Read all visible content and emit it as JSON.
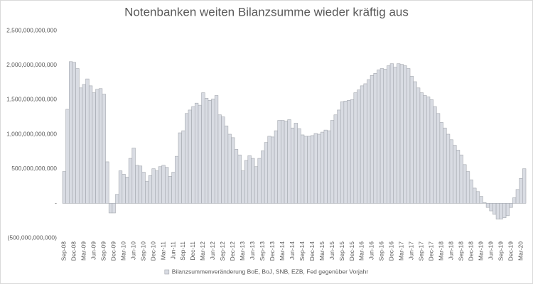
{
  "chart_data": {
    "type": "bar",
    "title": "Notenbanken weiten Bilanzsumme wieder kräftig aus",
    "categories": [
      "Sep-08",
      null,
      null,
      "Dec-08",
      null,
      null,
      "Mar-09",
      null,
      null,
      "Jun-09",
      null,
      null,
      "Sep-09",
      null,
      null,
      "Dec-09",
      null,
      null,
      "Mar-10",
      null,
      null,
      "Jun-10",
      null,
      null,
      "Sep-10",
      null,
      null,
      "Dec-10",
      null,
      null,
      "Mar-11",
      null,
      null,
      "Jun-11",
      null,
      null,
      "Sep-11",
      null,
      null,
      "Dec-11",
      null,
      null,
      "Mar-12",
      null,
      null,
      "Jun-12",
      null,
      null,
      "Sep-12",
      null,
      null,
      "Dec-12",
      null,
      null,
      "Mar-13",
      null,
      null,
      "Jun-13",
      null,
      null,
      "Sep-13",
      null,
      null,
      "Dec-13",
      null,
      null,
      "Mar-14",
      null,
      null,
      "Jun-14",
      null,
      null,
      "Sep-14",
      null,
      null,
      "Dec-14",
      null,
      null,
      "Mar-15",
      null,
      null,
      "Jun-15",
      null,
      null,
      "Sep-15",
      null,
      null,
      "Dec-15",
      null,
      null,
      "Mar-16",
      null,
      null,
      "Jun-16",
      null,
      null,
      "Sep-16",
      null,
      null,
      "Dec-16",
      null,
      null,
      "Mar-17",
      null,
      null,
      "Jun-17",
      null,
      null,
      "Sep-17",
      null,
      null,
      "Dec-17",
      null,
      null,
      "Mar-18",
      null,
      null,
      "Jun-18",
      null,
      null,
      "Sep-18",
      null,
      null,
      "Dec-18",
      null,
      null,
      "Mar-19",
      null,
      null,
      "Jun-19",
      null,
      null,
      "Sep-19",
      null,
      null,
      "Dec-19",
      null,
      null,
      "Mar-20",
      null
    ],
    "series": [
      {
        "name": "Bilanzsummenveränderung BoE, BoJ, SNB, EZB, Fed gegenüber Vorjahr",
        "color": "#d9dce3",
        "stroke": "#a3a7ae",
        "values": [
          460000000000.0,
          1360000000000.0,
          2050000000000.0,
          2040000000000.0,
          1950000000000.0,
          1670000000000.0,
          1720000000000.0,
          1800000000000.0,
          1700000000000.0,
          1600000000000.0,
          1650000000000.0,
          1660000000000.0,
          1580000000000.0,
          600000000000.0,
          -140000000000.0,
          -140000000000.0,
          130000000000.0,
          470000000000.0,
          420000000000.0,
          380000000000.0,
          650000000000.0,
          800000000000.0,
          550000000000.0,
          540000000000.0,
          450000000000.0,
          320000000000.0,
          400000000000.0,
          500000000000.0,
          470000000000.0,
          530000000000.0,
          550000000000.0,
          520000000000.0,
          390000000000.0,
          450000000000.0,
          680000000000.0,
          1020000000000.0,
          1050000000000.0,
          1300000000000.0,
          1350000000000.0,
          1400000000000.0,
          1450000000000.0,
          1420000000000.0,
          1600000000000.0,
          1520000000000.0,
          1490000000000.0,
          1510000000000.0,
          1560000000000.0,
          1280000000000.0,
          1250000000000.0,
          1120000000000.0,
          1000000000000.0,
          950000000000.0,
          780000000000.0,
          700000000000.0,
          470000000000.0,
          620000000000.0,
          690000000000.0,
          650000000000.0,
          530000000000.0,
          650000000000.0,
          760000000000.0,
          880000000000.0,
          970000000000.0,
          960000000000.0,
          1050000000000.0,
          1200000000000.0,
          1200000000000.0,
          1190000000000.0,
          1210000000000.0,
          1090000000000.0,
          1160000000000.0,
          1080000000000.0,
          990000000000.0,
          970000000000.0,
          970000000000.0,
          980000000000.0,
          1010000000000.0,
          1000000000000.0,
          1030000000000.0,
          1060000000000.0,
          1050000000000.0,
          1200000000000.0,
          1280000000000.0,
          1350000000000.0,
          1470000000000.0,
          1480000000000.0,
          1490000000000.0,
          1500000000000.0,
          1600000000000.0,
          1640000000000.0,
          1700000000000.0,
          1730000000000.0,
          1790000000000.0,
          1850000000000.0,
          1880000000000.0,
          1930000000000.0,
          1950000000000.0,
          1940000000000.0,
          1990000000000.0,
          2020000000000.0,
          1970000000000.0,
          2020000000000.0,
          2010000000000.0,
          1990000000000.0,
          1950000000000.0,
          1840000000000.0,
          1760000000000.0,
          1670000000000.0,
          1600000000000.0,
          1560000000000.0,
          1540000000000.0,
          1500000000000.0,
          1400000000000.0,
          1300000000000.0,
          1170000000000.0,
          1090000000000.0,
          1000000000000.0,
          920000000000.0,
          840000000000.0,
          770000000000.0,
          700000000000.0,
          560000000000.0,
          460000000000.0,
          340000000000.0,
          220000000000.0,
          170000000000.0,
          100000000000.0,
          10000000000.0,
          -60000000000.0,
          -110000000000.0,
          -160000000000.0,
          -230000000000.0,
          -230000000000.0,
          -210000000000.0,
          -180000000000.0,
          -60000000000.0,
          80000000000.0,
          200000000000.0,
          360000000000.0,
          500000000000.0
        ]
      }
    ],
    "ylim": [
      -500000000000,
      2500000000000
    ],
    "yticks": [
      {
        "value": -500000000000,
        "label": "(500,000,000,000)"
      },
      {
        "value": 0,
        "label": "-"
      },
      {
        "value": 500000000000,
        "label": "500,000,000,000"
      },
      {
        "value": 1000000000000,
        "label": "1,000,000,000,000"
      },
      {
        "value": 1500000000000,
        "label": "1,500,000,000,000"
      },
      {
        "value": 2000000000000,
        "label": "2,000,000,000,000"
      },
      {
        "value": 2500000000000,
        "label": "2,500,000,000,000"
      }
    ],
    "grid": false,
    "legend": "bottom"
  }
}
